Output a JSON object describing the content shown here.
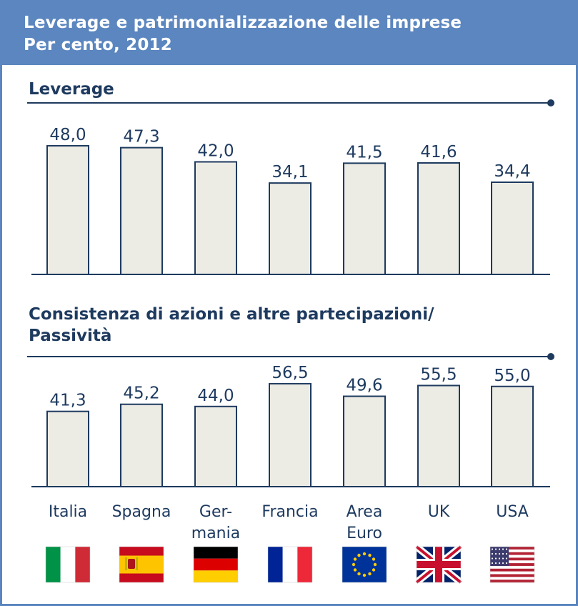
{
  "header": {
    "title": "Leverage e patrimonializzazione delle imprese",
    "subtitle": "Per cento, 2012"
  },
  "colors": {
    "header_bg": "#5b86bf",
    "text": "#1e3a5f",
    "bar_fill": "#ecebe4",
    "bar_stroke": "#1e3a5f"
  },
  "chart_data": [
    {
      "type": "bar",
      "title": "Leverage",
      "categories": [
        "Italia",
        "Spagna",
        "Germania",
        "Francia",
        "Area Euro",
        "UK",
        "USA"
      ],
      "values": [
        48.0,
        47.3,
        42.0,
        34.1,
        41.5,
        41.6,
        34.4
      ],
      "value_labels": [
        "48,0",
        "47,3",
        "42,0",
        "34,1",
        "41,5",
        "41,6",
        "34,4"
      ],
      "grid": false
    },
    {
      "type": "bar",
      "title_lines": [
        "Consistenza di azioni e altre partecipazioni/",
        "Passività"
      ],
      "categories": [
        "Italia",
        "Spagna",
        "Germania",
        "Francia",
        "Area Euro",
        "UK",
        "USA"
      ],
      "values": [
        41.3,
        45.2,
        44.0,
        56.5,
        49.6,
        55.5,
        55.0
      ],
      "value_labels": [
        "41,3",
        "45,2",
        "44,0",
        "56,5",
        "49,6",
        "55,5",
        "55,0"
      ],
      "grid": false
    }
  ],
  "category_labels": [
    [
      "Italia"
    ],
    [
      "Spagna"
    ],
    [
      "Ger-",
      "mania"
    ],
    [
      "Francia"
    ],
    [
      "Area",
      "Euro"
    ],
    [
      "UK"
    ],
    [
      "USA"
    ]
  ],
  "flags": [
    "italy-flag-icon",
    "spain-flag-icon",
    "germany-flag-icon",
    "france-flag-icon",
    "eu-flag-icon",
    "uk-flag-icon",
    "usa-flag-icon"
  ]
}
